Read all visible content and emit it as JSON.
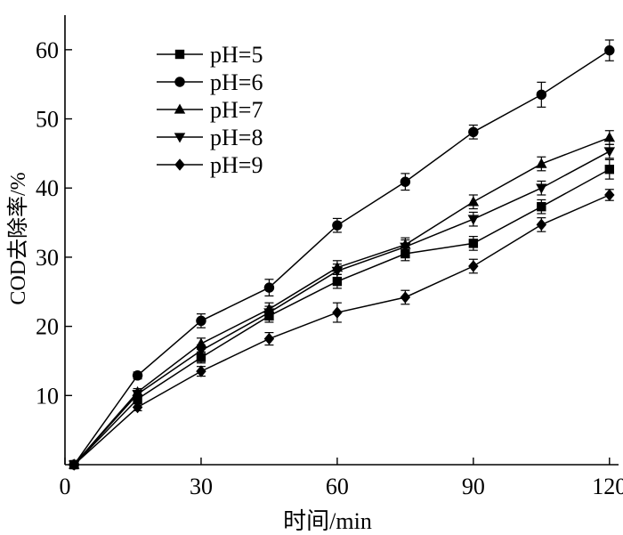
{
  "chart_data": {
    "type": "line",
    "title": "",
    "xlabel": "时间/min",
    "ylabel": "COD去除率/%",
    "x": [
      2,
      16,
      30,
      45,
      60,
      75,
      90,
      105,
      120
    ],
    "xticks": [
      0,
      30,
      60,
      90,
      120
    ],
    "yticks": [
      10,
      20,
      30,
      40,
      50,
      60
    ],
    "xlim": [
      0,
      122
    ],
    "ylim": [
      0,
      65
    ],
    "grid": false,
    "legend_position": "top-left",
    "series": [
      {
        "name": "pH=5",
        "marker": "square",
        "values": [
          0,
          9.5,
          15.5,
          21.5,
          26.5,
          30.5,
          32.0,
          37.3,
          42.7
        ],
        "errors": [
          0,
          0.6,
          0.8,
          0.9,
          1.0,
          1.0,
          1.0,
          1.0,
          1.4
        ]
      },
      {
        "name": "pH=6",
        "marker": "circle",
        "values": [
          0,
          12.9,
          20.8,
          25.6,
          34.6,
          40.9,
          48.1,
          53.5,
          59.9
        ],
        "errors": [
          0,
          0.5,
          1.0,
          1.2,
          1.0,
          1.2,
          1.0,
          1.8,
          1.5
        ]
      },
      {
        "name": "pH=7",
        "marker": "triangle-up",
        "values": [
          0,
          10.5,
          17.5,
          22.5,
          28.5,
          31.8,
          38.0,
          43.5,
          47.3
        ],
        "errors": [
          0,
          0.5,
          0.8,
          0.9,
          1.0,
          1.0,
          1.0,
          1.0,
          1.0
        ]
      },
      {
        "name": "pH=8",
        "marker": "triangle-down",
        "values": [
          0,
          10.2,
          16.5,
          22.0,
          28.0,
          31.5,
          35.5,
          40.0,
          45.3
        ],
        "errors": [
          0,
          0.5,
          0.8,
          0.9,
          1.0,
          1.0,
          1.0,
          1.0,
          1.0
        ]
      },
      {
        "name": "pH=9",
        "marker": "diamond",
        "values": [
          0,
          8.3,
          13.5,
          18.2,
          22.0,
          24.2,
          28.7,
          34.7,
          39.0
        ],
        "errors": [
          0,
          0.5,
          0.7,
          0.9,
          1.4,
          1.0,
          1.0,
          1.0,
          0.8
        ]
      }
    ]
  }
}
